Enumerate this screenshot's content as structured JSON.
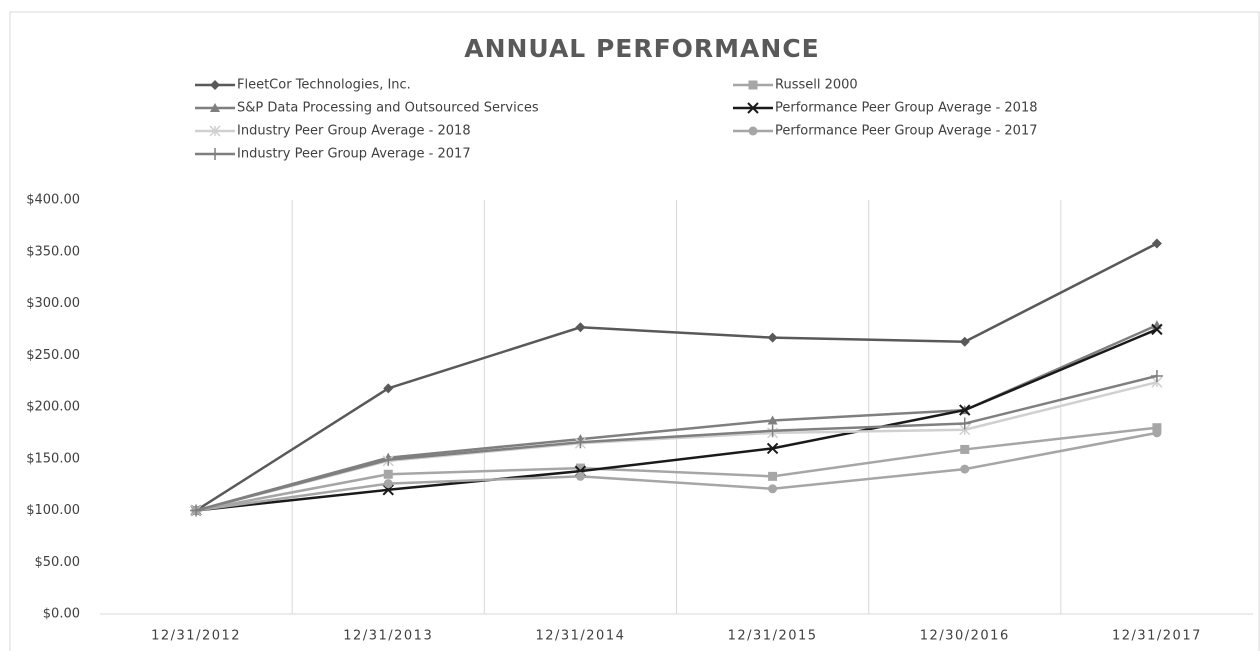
{
  "chart_data": {
    "type": "line",
    "title": "ANNUAL PERFORMANCE",
    "categories": [
      "12/31/2012",
      "12/31/2013",
      "12/31/2014",
      "12/31/2015",
      "12/30/2016",
      "12/31/2017"
    ],
    "series": [
      {
        "name": "FleetCor Technologies, Inc.",
        "color": "#595959",
        "marker": "diamond",
        "values": [
          100,
          218,
          277,
          267,
          263,
          358
        ]
      },
      {
        "name": "Russell 2000",
        "color": "#a6a6a6",
        "marker": "square",
        "values": [
          100,
          135,
          141,
          133,
          159,
          180
        ]
      },
      {
        "name": "S&P Data Processing and Outsourced Services",
        "color": "#7f7f7f",
        "marker": "triangle",
        "values": [
          100,
          151,
          169,
          187,
          197,
          279
        ]
      },
      {
        "name": "Performance Peer Group Average - 2018",
        "color": "#1a1a1a",
        "marker": "x",
        "values": [
          100,
          120,
          138,
          160,
          197,
          275
        ]
      },
      {
        "name": "Industry Peer Group Average - 2018",
        "color": "#d0d0d0",
        "marker": "star",
        "values": [
          100,
          148,
          165,
          175,
          178,
          224
        ]
      },
      {
        "name": "Performance Peer Group Average - 2017",
        "color": "#a6a6a6",
        "marker": "circle",
        "values": [
          100,
          126,
          133,
          121,
          140,
          175
        ]
      },
      {
        "name": "Industry Peer Group Average - 2017",
        "color": "#7f7f7f",
        "marker": "plus",
        "values": [
          100,
          149,
          166,
          177,
          184,
          230
        ]
      }
    ],
    "ylim": [
      0,
      400
    ],
    "yticks": [
      {
        "value": 0,
        "label": "$0.00"
      },
      {
        "value": 50,
        "label": "$50.00"
      },
      {
        "value": 100,
        "label": "$100.00"
      },
      {
        "value": 150,
        "label": "$150.00"
      },
      {
        "value": 200,
        "label": "$200.00"
      },
      {
        "value": 250,
        "label": "$250.00"
      },
      {
        "value": 300,
        "label": "$300.00"
      },
      {
        "value": 350,
        "label": "$350.00"
      },
      {
        "value": 400,
        "label": "$400.00"
      }
    ],
    "vertical_grid": true,
    "legend": "top"
  }
}
